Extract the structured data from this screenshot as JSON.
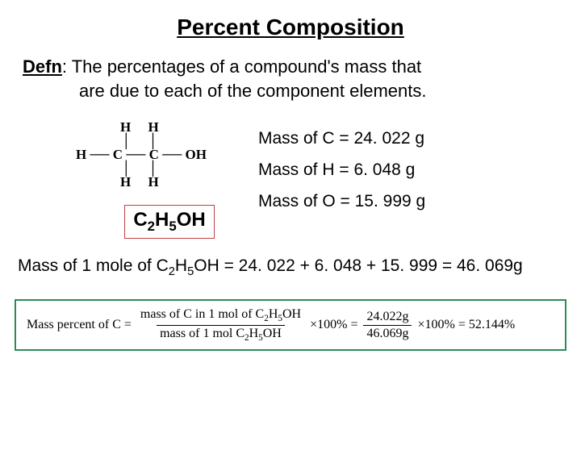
{
  "title": "Percent Composition",
  "defn": {
    "label": "Defn",
    "text1": ":  The percentages of a compound's mass that",
    "text2": "are due to each of the component elements."
  },
  "structure": {
    "rows": [
      "       H     H        ",
      "       │     │        ",
      "H ── C ── C ── OH",
      "       │     │        ",
      "       H     H        "
    ]
  },
  "masses": {
    "c": "Mass of C = 24. 022 g",
    "h": "Mass of H = 6. 048 g",
    "o": "Mass of O = 15. 999 g"
  },
  "formula": {
    "c_sub": "2",
    "h_sub": "5",
    "tail": "OH"
  },
  "mole_line": {
    "prefix": "Mass of 1 mole of C",
    "sub1": "2",
    "mid1": "H",
    "sub2": "5",
    "mid2": "OH = 24. 022 + 6. 048 + 15. 999 = 46. 069g"
  },
  "equation": {
    "lhs": "Mass percent of C =",
    "num1_a": "mass of C in 1 mol of C",
    "num1_b": "H",
    "num1_c": "OH",
    "den1_a": "mass of 1 mol C",
    "den1_b": "H",
    "den1_c": "OH",
    "times100_1": "×100% =",
    "num2": "24.022g",
    "den2": "46.069g",
    "times100_2": "×100% = 52.144%"
  },
  "colors": {
    "formula_border": "#c04040",
    "equation_border": "#2e8b57"
  }
}
